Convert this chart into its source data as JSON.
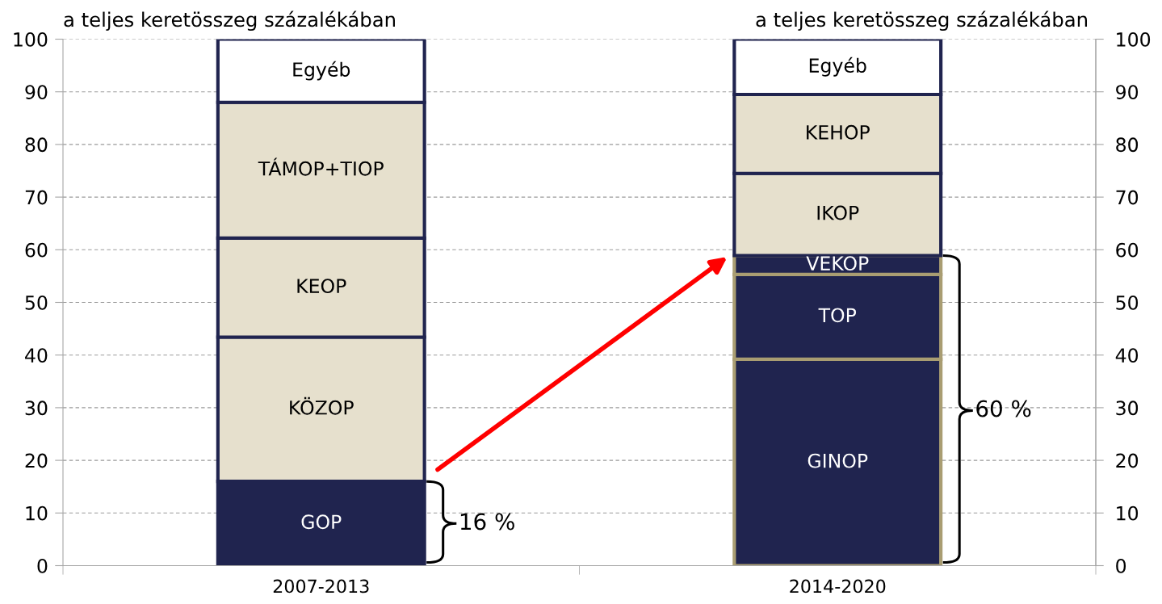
{
  "chart_data": {
    "type": "bar",
    "stacked": true,
    "ylabel": "a teljes keretösszeg százalékában",
    "y2label": "a teljes keretösszeg százalékában",
    "categories": [
      "2007-2013",
      "2014-2020"
    ],
    "series": [
      {
        "name": "GOP",
        "color": "#20244f",
        "values": [
          16,
          null
        ]
      },
      {
        "name": "KÖZOP",
        "color": "#e6e0cd",
        "values": [
          27.4,
          null
        ]
      },
      {
        "name": "KEOP",
        "color": "#e6e0cd",
        "values": [
          18.8,
          null
        ]
      },
      {
        "name": "TÁMOP+TIOP",
        "color": "#e6e0cd",
        "values": [
          25.8,
          null
        ]
      },
      {
        "name": "GINOP",
        "color": "#20244f",
        "values": [
          null,
          39.2
        ]
      },
      {
        "name": "TOP",
        "color": "#20244f",
        "values": [
          null,
          16.1
        ]
      },
      {
        "name": "VEKOP",
        "color": "#20244f",
        "values": [
          null,
          3.6
        ]
      },
      {
        "name": "IKOP",
        "color": "#e6e0cd",
        "values": [
          null,
          15.6
        ]
      },
      {
        "name": "KEHOP",
        "color": "#e6e0cd",
        "values": [
          null,
          15
        ]
      },
      {
        "name": "Egyéb",
        "color": "#ffffff",
        "values": [
          12,
          10.5
        ]
      }
    ],
    "ylim": [
      0,
      100
    ],
    "yticks": [
      0,
      10,
      20,
      30,
      40,
      50,
      60,
      70,
      80,
      90,
      100
    ],
    "y2lim": [
      0,
      100
    ],
    "y2ticks": [
      0,
      10,
      20,
      30,
      40,
      50,
      60,
      70,
      80,
      90,
      100
    ],
    "grid": "y",
    "annotations": [
      "16 %",
      "60 %"
    ]
  }
}
